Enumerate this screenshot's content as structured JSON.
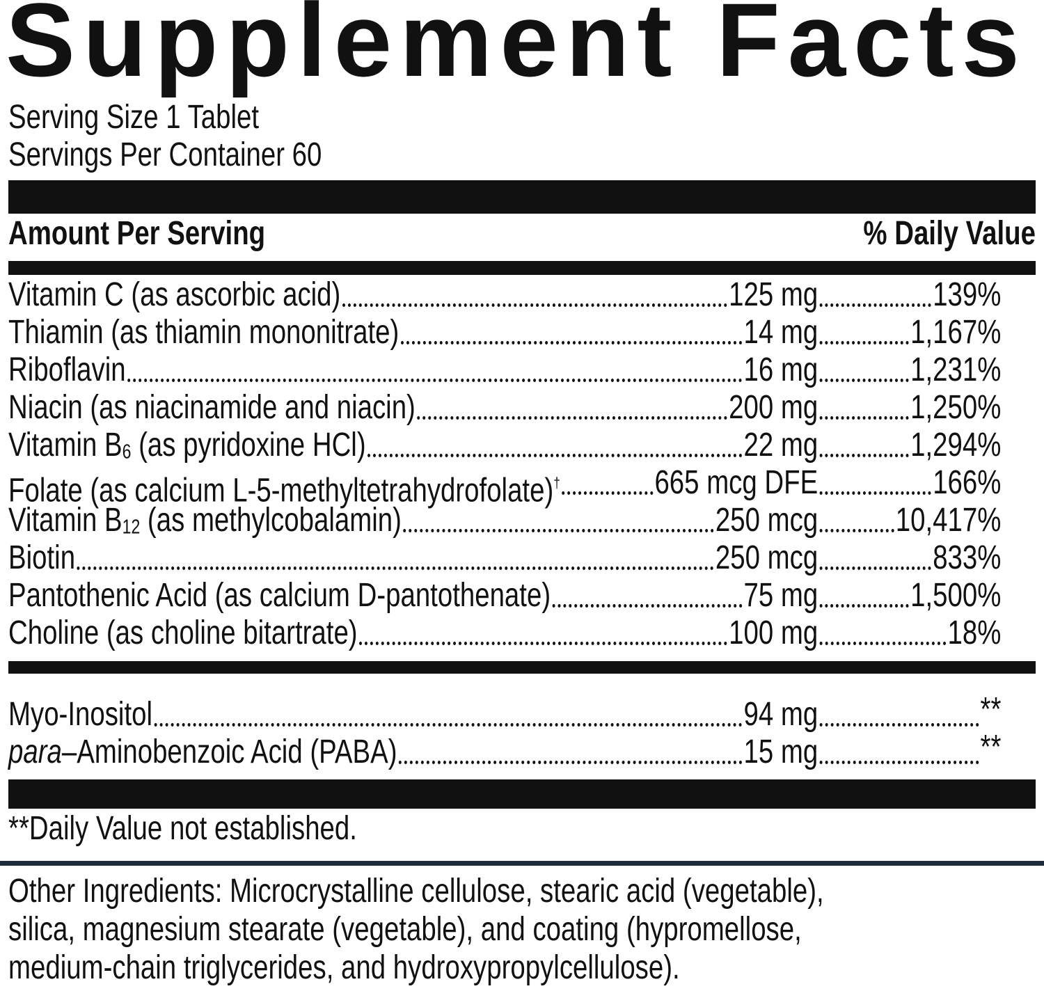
{
  "title": "Supplement Facts",
  "serving_size": "Serving Size 1 Tablet",
  "servings_per_container": "Servings Per Container 60",
  "header": {
    "amount": "Amount Per Serving",
    "daily_value": "% Daily Value"
  },
  "nutrients": [
    {
      "name": [
        {
          "text": "Vitamin C (as ascorbic acid)"
        }
      ],
      "amount": "125 mg",
      "daily_value": "139%"
    },
    {
      "name": [
        {
          "text": "Thiamin (as thiamin mononitrate)"
        }
      ],
      "amount": "14 mg",
      "daily_value": "1,167%"
    },
    {
      "name": [
        {
          "text": "Riboflavin"
        }
      ],
      "amount": "16 mg",
      "daily_value": "1,231%"
    },
    {
      "name": [
        {
          "text": "Niacin (as niacinamide and niacin)"
        }
      ],
      "amount": "200 mg",
      "daily_value": "1,250%"
    },
    {
      "name": [
        {
          "text": "Vitamin B"
        },
        {
          "text": "6",
          "format": "subscript"
        },
        {
          "text": " (as pyridoxine HCl)"
        }
      ],
      "amount": "22 mg",
      "daily_value": "1,294%"
    },
    {
      "name": [
        {
          "text": "Folate (as calcium L-5-methyltetrahydrofolate)"
        },
        {
          "text": "†",
          "format": "superscript"
        }
      ],
      "amount": "665 mcg DFE",
      "daily_value": "166%"
    },
    {
      "name": [
        {
          "text": "Vitamin B"
        },
        {
          "text": "12",
          "format": "subscript"
        },
        {
          "text": " (as methylcobalamin)"
        }
      ],
      "amount": "250 mcg",
      "daily_value": "10,417%"
    },
    {
      "name": [
        {
          "text": "Biotin"
        }
      ],
      "amount": "250 mcg",
      "daily_value": "833%"
    },
    {
      "name": [
        {
          "text": "Pantothenic Acid (as calcium D-pantothenate)"
        }
      ],
      "amount": "75 mg",
      "daily_value": "1,500%"
    },
    {
      "name": [
        {
          "text": "Choline (as choline bitartrate)"
        }
      ],
      "amount": "100 mg",
      "daily_value": "18%"
    }
  ],
  "other_nutrients": [
    {
      "name": [
        {
          "text": "Myo-Inositol"
        }
      ],
      "amount": "94 mg",
      "daily_value": "**"
    },
    {
      "name": [
        {
          "text": "para",
          "format": "italic"
        },
        {
          "text": "–Aminobenzoic Acid (PABA)"
        }
      ],
      "amount": "15 mg",
      "daily_value": "**"
    }
  ],
  "footnote": "**Daily Value not established.",
  "other_ingredients": [
    "Other Ingredients: Microcrystalline cellulose, stearic acid (vegetable),",
    "silica, magnesium stearate (vegetable), and coating (hypromellose,",
    "medium-chain triglycerides, and hydroxypropylcellulose)."
  ]
}
